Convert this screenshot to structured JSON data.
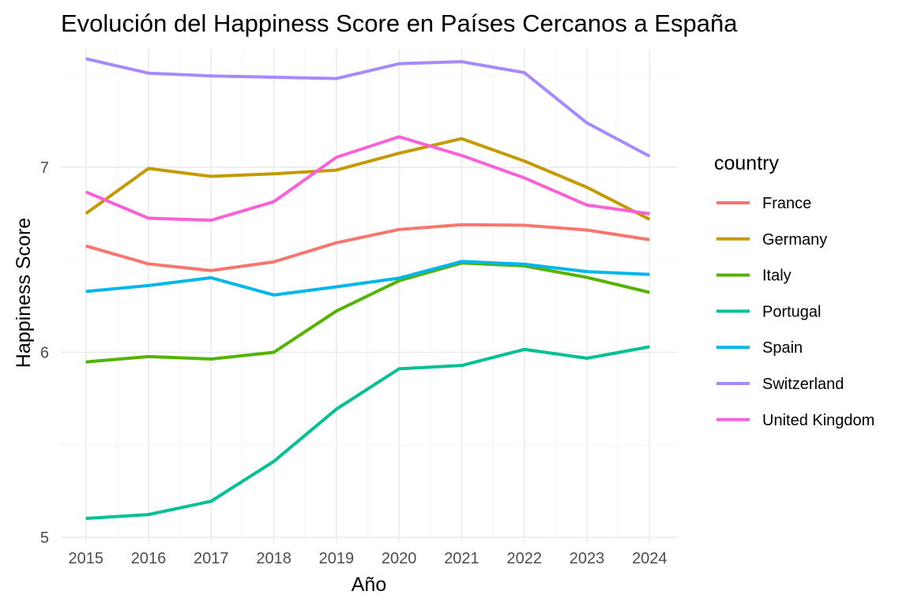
{
  "chart_data": {
    "type": "line",
    "title": "Evolución del Happiness Score en Países Cercanos a España",
    "xlabel": "Año",
    "ylabel": "Happiness Score",
    "x": [
      2015,
      2016,
      2017,
      2018,
      2019,
      2020,
      2021,
      2022,
      2023,
      2024
    ],
    "xlim": [
      2014.6,
      2024.45
    ],
    "ylim": [
      4.97,
      7.64
    ],
    "yticks": [
      5,
      6,
      7
    ],
    "xticks": [
      "2015",
      "2016",
      "2017",
      "2018",
      "2019",
      "2020",
      "2021",
      "2022",
      "2023",
      "2024"
    ],
    "grid": true,
    "legend": {
      "title": "country",
      "position": "right"
    },
    "series": [
      {
        "name": "France",
        "color": "#F8766D",
        "values": [
          6.575,
          6.478,
          6.442,
          6.489,
          6.592,
          6.664,
          6.69,
          6.687,
          6.661,
          6.609
        ]
      },
      {
        "name": "Germany",
        "color": "#C49A00",
        "values": [
          6.75,
          6.994,
          6.951,
          6.965,
          6.985,
          7.076,
          7.155,
          7.034,
          6.892,
          6.719
        ]
      },
      {
        "name": "Italy",
        "color": "#53B400",
        "values": [
          5.948,
          5.977,
          5.964,
          6.0,
          6.223,
          6.387,
          6.483,
          6.467,
          6.405,
          6.324
        ]
      },
      {
        "name": "Portugal",
        "color": "#00C094",
        "values": [
          5.102,
          5.123,
          5.195,
          5.41,
          5.693,
          5.911,
          5.929,
          6.016,
          5.968,
          6.03
        ]
      },
      {
        "name": "Spain",
        "color": "#00B6EB",
        "values": [
          6.329,
          6.361,
          6.403,
          6.31,
          6.354,
          6.401,
          6.491,
          6.476,
          6.436,
          6.421
        ]
      },
      {
        "name": "Switzerland",
        "color": "#A58AFF",
        "values": [
          7.587,
          7.509,
          7.494,
          7.487,
          7.48,
          7.56,
          7.571,
          7.512,
          7.24,
          7.06
        ]
      },
      {
        "name": "United Kingdom",
        "color": "#FB61D7",
        "values": [
          6.867,
          6.725,
          6.714,
          6.814,
          7.054,
          7.165,
          7.064,
          6.943,
          6.796,
          6.749
        ]
      }
    ]
  }
}
